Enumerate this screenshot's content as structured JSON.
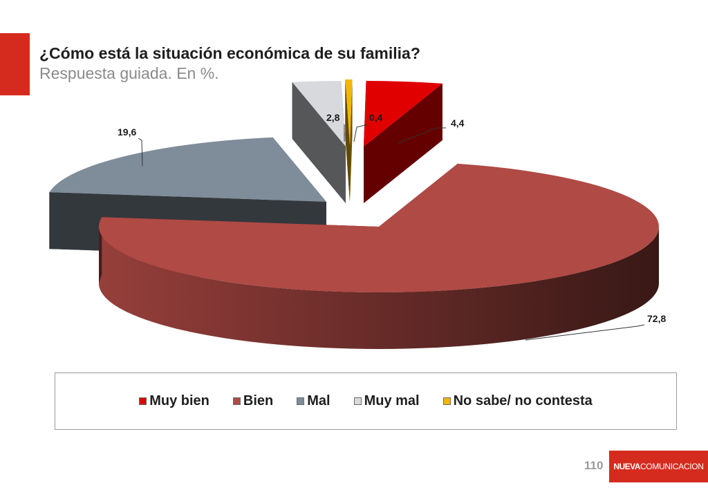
{
  "header": {
    "title": "¿Cómo está la situación económica de su familia?",
    "subtitle": "Respuesta guiada. En %.",
    "accent_color": "#d52b1e"
  },
  "chart_data": {
    "type": "pie",
    "title": "",
    "style": "3d-exploded",
    "legend_position": "bottom",
    "series": [
      {
        "name": "Muy bien",
        "value": 4.4,
        "label": "4,4",
        "color": "#e00000"
      },
      {
        "name": "Bien",
        "value": 72.8,
        "label": "72,8",
        "color": "#b04a45"
      },
      {
        "name": "Mal",
        "value": 19.6,
        "label": "19,6",
        "color": "#7f8c99"
      },
      {
        "name": "Muy mal",
        "value": 2.8,
        "label": "2,8",
        "color": "#d8d9dc"
      },
      {
        "name": "No sabe/ no contesta",
        "value": 0.4,
        "label": "0,4",
        "color": "#f2b705"
      }
    ]
  },
  "footer": {
    "page_number": "110",
    "logo_bold": "NUEVA",
    "logo_light": "COMUNICACION"
  }
}
